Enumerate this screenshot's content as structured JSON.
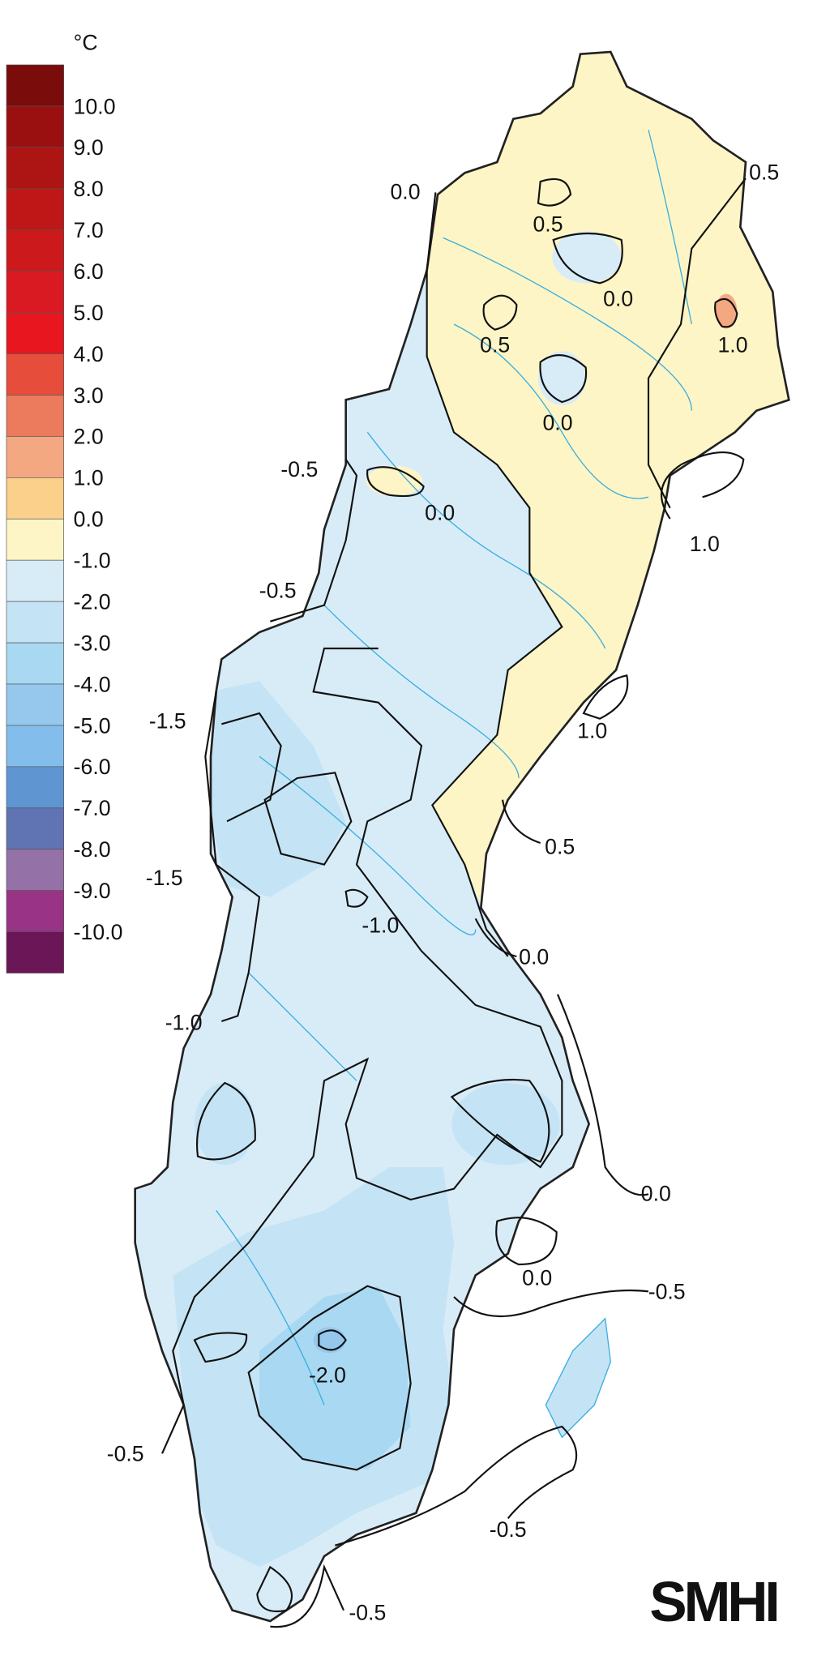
{
  "legend": {
    "unit": "°C",
    "colors": [
      "#7a0c0c",
      "#9a1010",
      "#ad1414",
      "#bf1717",
      "#cc1a1c",
      "#d91a22",
      "#e8161e",
      "#e64d3b",
      "#ec7a5c",
      "#f4a882",
      "#fad08a",
      "#fdf5c5",
      "#d8ecf8",
      "#c4e4f5",
      "#a9d8f2",
      "#96c8ee",
      "#82bdeb",
      "#5f96d1",
      "#6073b3",
      "#9471a7",
      "#993385",
      "#6b1656"
    ],
    "labels": [
      "10.0",
      "9.0",
      "8.0",
      "7.0",
      "6.0",
      "5.0",
      "4.0",
      "3.0",
      "2.0",
      "1.0",
      "0.0",
      "-1.0",
      "-2.0",
      "-3.0",
      "-4.0",
      "-5.0",
      "-6.0",
      "-7.0",
      "-8.0",
      "-9.0",
      "-10.0"
    ]
  },
  "contour_labels": [
    "0.0",
    "0.5",
    "0.5",
    "0.0",
    "0.5",
    "1.0",
    "0.0",
    "-0.5",
    "0.0",
    "1.0",
    "-0.5",
    "-1.5",
    "1.0",
    "0.5",
    "-1.5",
    "-1.0",
    "0.0",
    "-1.0",
    "0.0",
    "0.0",
    "-0.5",
    "-2.0",
    "-0.5",
    "-0.5",
    "-0.5"
  ],
  "logo": "SMHI"
}
